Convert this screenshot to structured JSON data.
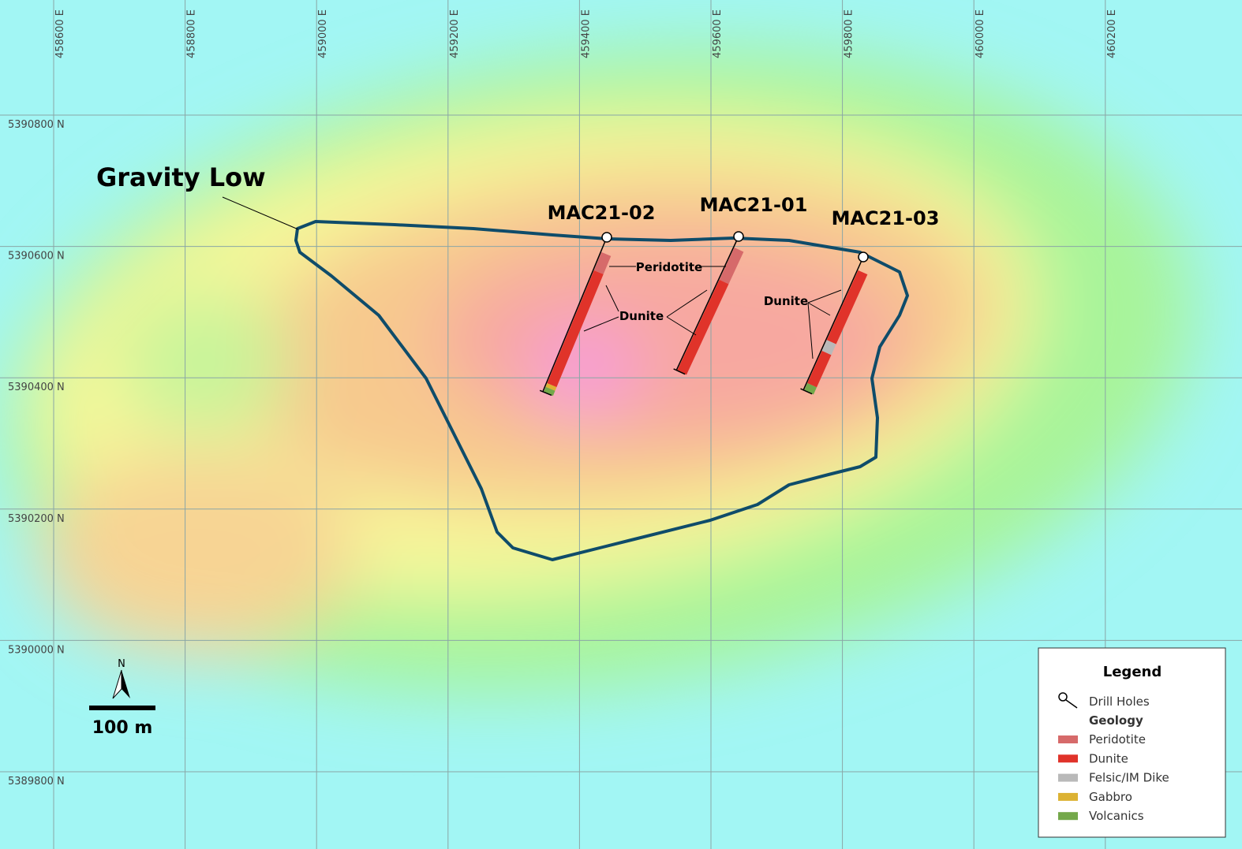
{
  "grid": {
    "eastings": [
      "458600 E",
      "458800 E",
      "459000 E",
      "459200 E",
      "459400 E",
      "459600 E",
      "459800 E",
      "460000 E",
      "460200 E"
    ],
    "northings": [
      "5390800 N",
      "5390600 N",
      "5390400 N",
      "5390200 N",
      "5390000 N",
      "5389800 N"
    ]
  },
  "annotations": {
    "gravity_low": "Gravity Low",
    "peridotite": "Peridotite",
    "dunite_a": "Dunite",
    "dunite_b": "Dunite"
  },
  "drill_holes": [
    {
      "label": "MAC21-02"
    },
    {
      "label": "MAC21-01"
    },
    {
      "label": "MAC21-03"
    }
  ],
  "scale_bar": {
    "north": "N",
    "label": "100 m"
  },
  "legend": {
    "title": "Legend",
    "drill_holes": "Drill Holes",
    "geology": "Geology",
    "items": [
      {
        "label": "Peridotite",
        "color": "#d66a6a"
      },
      {
        "label": "Dunite",
        "color": "#e0332a"
      },
      {
        "label": "Felsic/IM Dike",
        "color": "#b9b9b9"
      },
      {
        "label": "Gabbro",
        "color": "#dcb233"
      },
      {
        "label": "Volcanics",
        "color": "#74a84a"
      }
    ]
  }
}
